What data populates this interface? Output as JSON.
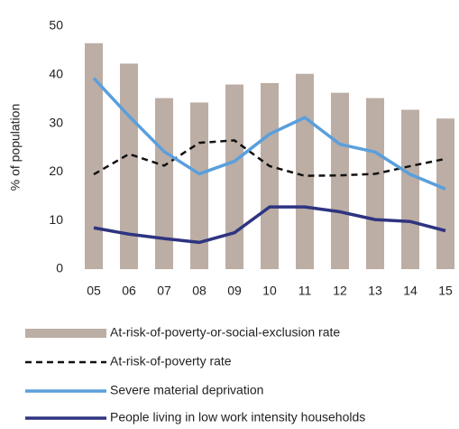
{
  "chart_data": {
    "type": "bar",
    "y_label": "% of population",
    "categories": [
      "05",
      "06",
      "07",
      "08",
      "09",
      "10",
      "11",
      "12",
      "13",
      "14",
      "15"
    ],
    "ylim": [
      0,
      50
    ],
    "yticks": [
      0,
      10,
      20,
      30,
      40,
      50
    ],
    "grid": false,
    "series": [
      {
        "name": "At-risk-of-poverty-or-social-exclusion rate",
        "type": "bar",
        "color": "#bcaea5",
        "values": [
          46.5,
          42.3,
          35.2,
          34.3,
          38.0,
          38.3,
          40.2,
          36.3,
          35.2,
          32.8,
          31.0
        ]
      },
      {
        "name": "At-risk-of-poverty rate",
        "type": "line",
        "dash": true,
        "color": "#111111",
        "values": [
          19.5,
          23.7,
          21.3,
          26.0,
          26.5,
          21.2,
          19.2,
          19.3,
          19.6,
          21.2,
          22.7
        ]
      },
      {
        "name": "Severe material deprivation",
        "type": "line",
        "dash": false,
        "color": "#5a9fdc",
        "values": [
          39.3,
          31.5,
          24.2,
          19.6,
          22.2,
          27.8,
          31.2,
          25.7,
          24.1,
          19.5,
          16.5
        ]
      },
      {
        "name": "People living in low work intensity households",
        "type": "line",
        "dash": false,
        "color": "#2e3480",
        "values": [
          8.5,
          7.2,
          6.3,
          5.5,
          7.5,
          12.8,
          12.8,
          11.8,
          10.2,
          9.8,
          7.9
        ]
      }
    ]
  }
}
